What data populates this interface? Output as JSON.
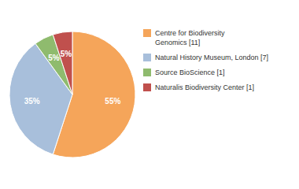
{
  "chart_data": {
    "type": "pie",
    "categories": [
      "Centre for Biodiversity\nGenomics [11]",
      "Natural History Museum, London [7]",
      "Source BioScience [1]",
      "Naturalis Biodiversity Center [1]"
    ],
    "values": [
      55,
      35,
      5,
      5
    ],
    "value_labels": [
      "55%",
      "35%",
      "5%",
      "5%"
    ],
    "colors": [
      "#f5a55a",
      "#a8bfdb",
      "#8fbb6e",
      "#c0504d"
    ],
    "data_labels": true,
    "legend": "right"
  }
}
